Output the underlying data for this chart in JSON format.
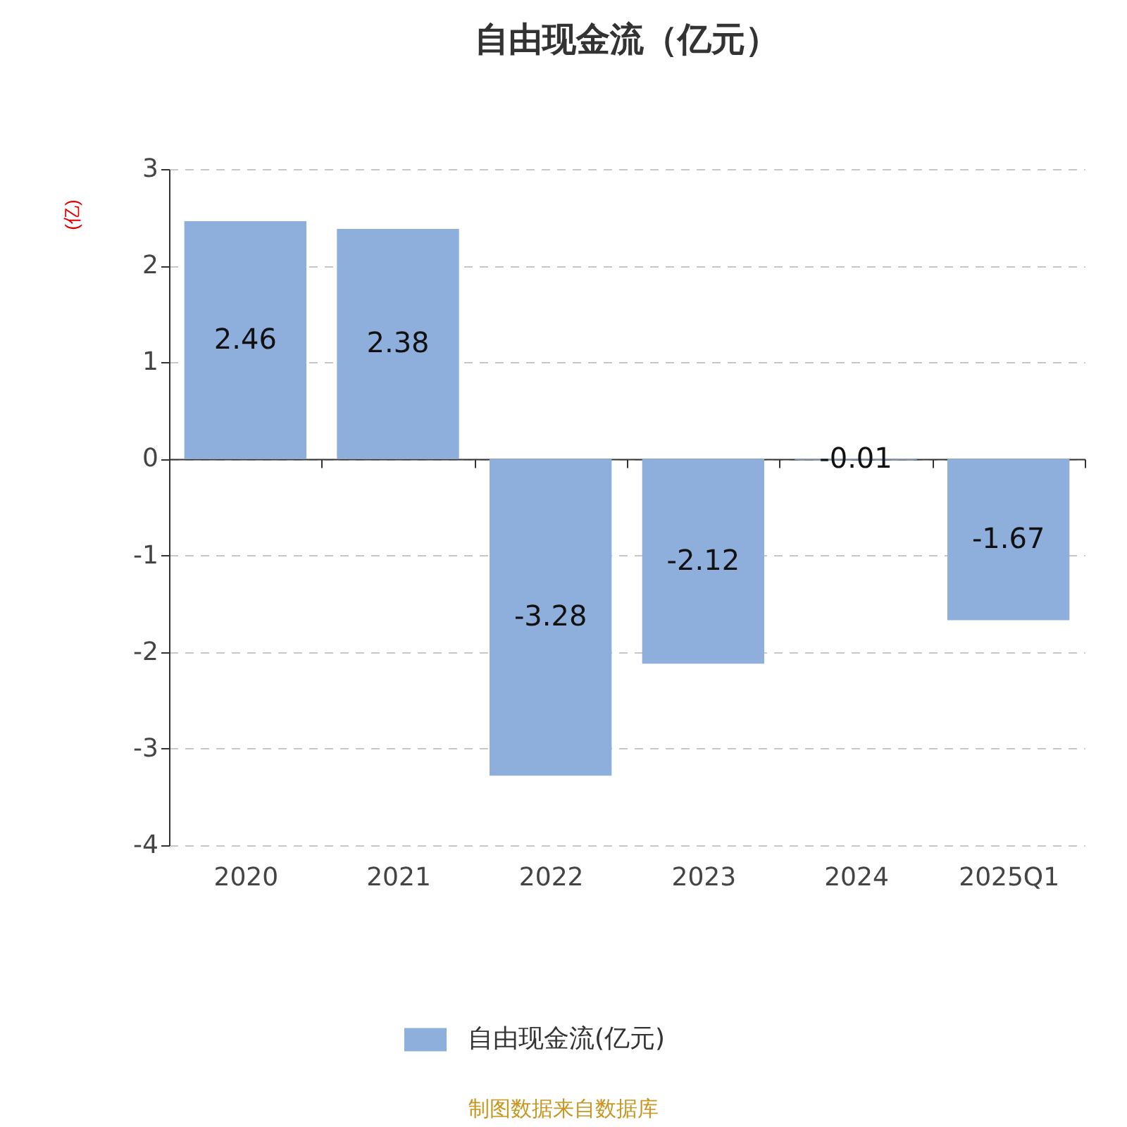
{
  "chart_data": {
    "type": "bar",
    "title": "自由现金流（亿元）",
    "ylabel": "(亿)",
    "categories": [
      "2020",
      "2021",
      "2022",
      "2023",
      "2024",
      "2025Q1"
    ],
    "series": [
      {
        "name": "自由现金流(亿元)",
        "color": "#8eaedb",
        "values": [
          2.46,
          2.38,
          -3.28,
          -2.12,
          -0.01,
          -1.67
        ]
      }
    ],
    "ylim": [
      -4,
      3
    ],
    "yticks": [
      -4,
      -3,
      -2,
      -1,
      0,
      1,
      2,
      3
    ],
    "grid": "y",
    "legend": "bottom",
    "data_labels": true,
    "annotations": [
      "制图数据来自数据库"
    ]
  }
}
